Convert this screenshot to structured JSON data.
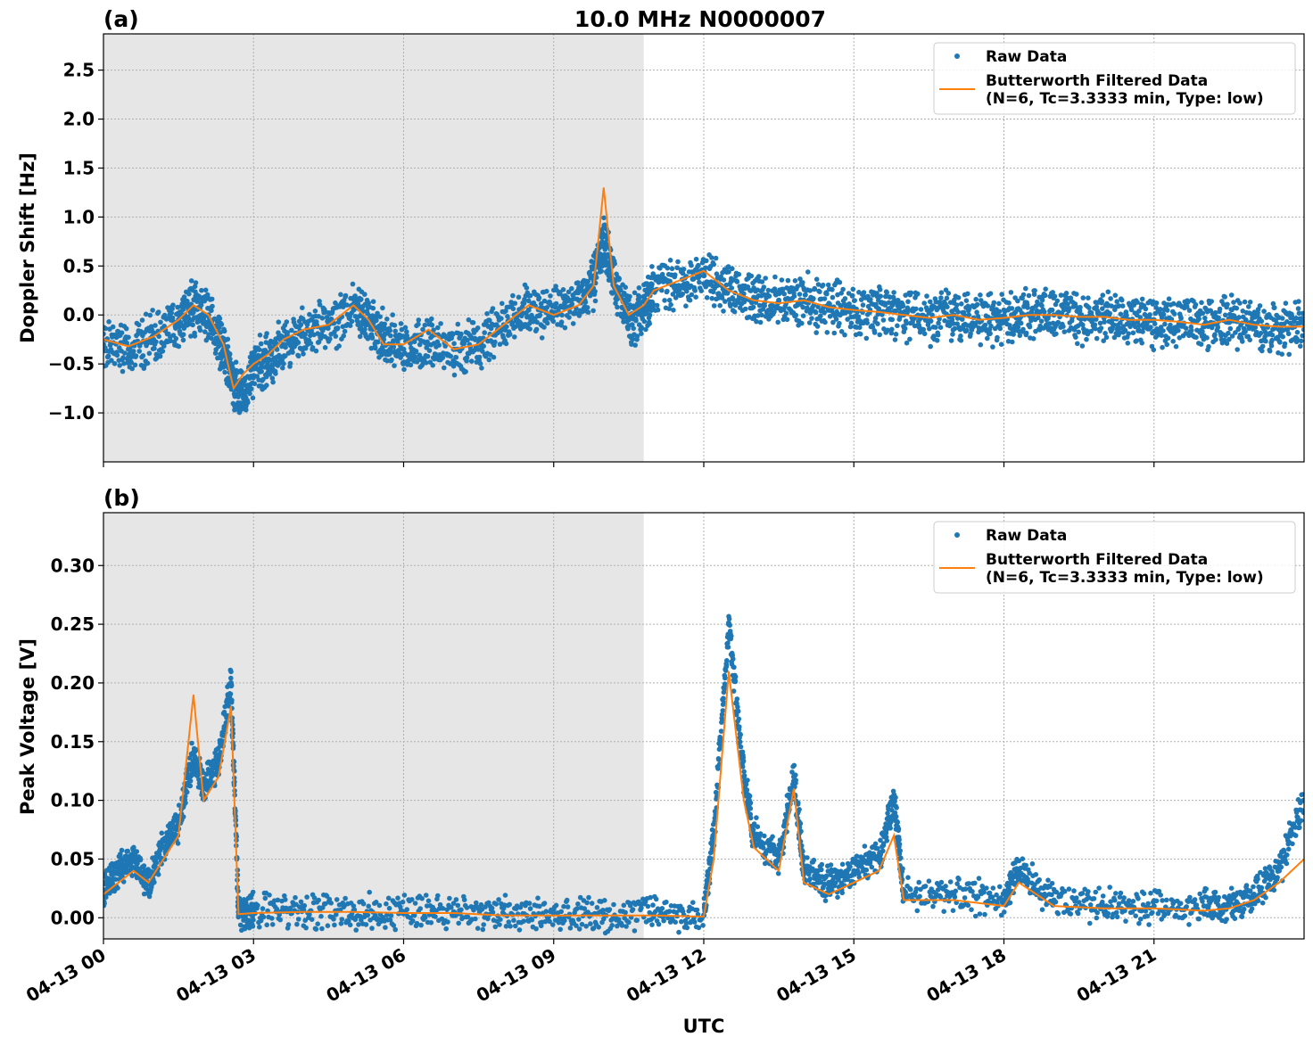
{
  "title": "10.0 MHz N0000007",
  "xlabel": "UTC",
  "x_ticks": [
    "04-13 00",
    "04-13 03",
    "04-13 06",
    "04-13 09",
    "04-13 12",
    "04-13 15",
    "04-13 18",
    "04-13 21"
  ],
  "colors": {
    "raw": "#1f77b4",
    "filtered": "#ff7f0e",
    "shade": "#e6e6e6",
    "grid": "#b0b0b0"
  },
  "legend": {
    "raw_label": "Raw Data",
    "filtered_line1": "Butterworth Filtered Data",
    "filtered_line2": "(N=6, Tc=3.3333 min, Type: low)"
  },
  "chart_data": [
    {
      "panel": "(a)",
      "type": "scatter+line",
      "ylabel": "Doppler Shift [Hz]",
      "ylim": [
        -1.5,
        2.87
      ],
      "xlim_hours": [
        0,
        24
      ],
      "y_ticks": [
        -1.0,
        -0.5,
        0.0,
        0.5,
        1.0,
        1.5,
        2.0,
        2.5
      ],
      "y_tick_labels": [
        "−1.0",
        "−0.5",
        "0.0",
        "0.5",
        "1.0",
        "1.5",
        "2.0",
        "2.5"
      ],
      "shaded_interval_hours": [
        0,
        10.8
      ],
      "series": [
        {
          "name": "Raw Data",
          "style": "markers",
          "x": [
            0,
            0.5,
            1.0,
            1.5,
            1.8,
            2.1,
            2.4,
            2.6,
            2.8,
            3.0,
            3.3,
            3.6,
            4.0,
            4.5,
            5.0,
            5.3,
            5.6,
            6.0,
            6.5,
            7.0,
            7.5,
            8.0,
            8.5,
            9.0,
            9.5,
            9.8,
            10.0,
            10.2,
            10.5,
            10.8,
            11.0,
            11.5,
            12.0,
            12.5,
            13.0,
            13.5,
            14.0,
            14.5,
            15.0,
            15.5,
            16.0,
            16.5,
            17.0,
            17.5,
            18.0,
            18.5,
            19.0,
            19.5,
            20.0,
            20.5,
            21.0,
            21.5,
            22.0,
            22.5,
            23.0,
            23.5,
            24.0
          ],
          "y": [
            -0.3,
            -0.35,
            -0.25,
            -0.05,
            0.08,
            0.0,
            -0.35,
            -0.7,
            -0.85,
            -0.55,
            -0.45,
            -0.3,
            -0.2,
            -0.1,
            0.05,
            -0.05,
            -0.25,
            -0.35,
            -0.3,
            -0.35,
            -0.3,
            -0.1,
            0.05,
            0.0,
            0.15,
            0.35,
            0.8,
            0.35,
            -0.05,
            0.05,
            0.25,
            0.3,
            0.4,
            0.25,
            0.18,
            0.15,
            0.15,
            0.08,
            0.05,
            0.05,
            0.0,
            -0.05,
            0.0,
            -0.05,
            -0.05,
            0.0,
            0.0,
            -0.03,
            -0.03,
            -0.05,
            -0.05,
            -0.08,
            -0.1,
            -0.05,
            -0.1,
            -0.15,
            -0.15
          ]
        },
        {
          "name": "Butterworth Filtered Data (N=6, Tc=3.3333 min, Type: low)",
          "style": "line",
          "x": [
            0,
            0.5,
            1.0,
            1.5,
            1.8,
            2.1,
            2.4,
            2.6,
            2.8,
            3.0,
            3.3,
            3.6,
            4.0,
            4.5,
            5.0,
            5.3,
            5.6,
            6.0,
            6.5,
            7.0,
            7.5,
            8.0,
            8.5,
            9.0,
            9.5,
            9.8,
            10.0,
            10.2,
            10.5,
            10.8,
            11.0,
            11.5,
            12.0,
            12.5,
            13.0,
            13.5,
            14.0,
            14.5,
            15.0,
            15.5,
            16.0,
            16.5,
            17.0,
            17.5,
            18.0,
            18.5,
            19.0,
            19.5,
            20.0,
            20.5,
            21.0,
            21.5,
            22.0,
            22.5,
            23.0,
            23.5,
            24.0
          ],
          "y": [
            -0.25,
            -0.32,
            -0.22,
            -0.05,
            0.1,
            0.0,
            -0.3,
            -0.75,
            -0.6,
            -0.5,
            -0.4,
            -0.25,
            -0.15,
            -0.1,
            0.1,
            -0.05,
            -0.3,
            -0.3,
            -0.15,
            -0.35,
            -0.3,
            -0.1,
            0.1,
            0.0,
            0.1,
            0.3,
            1.3,
            0.3,
            0.0,
            0.1,
            0.25,
            0.35,
            0.45,
            0.25,
            0.15,
            0.12,
            0.15,
            0.08,
            0.05,
            0.03,
            0.0,
            -0.03,
            0.0,
            -0.05,
            -0.03,
            0.0,
            0.0,
            -0.02,
            -0.02,
            -0.05,
            -0.05,
            -0.07,
            -0.1,
            -0.05,
            -0.1,
            -0.12,
            -0.12
          ]
        }
      ]
    },
    {
      "panel": "(b)",
      "type": "scatter+line",
      "ylabel": "Peak Voltage [V]",
      "ylim": [
        -0.018,
        0.345
      ],
      "xlim_hours": [
        0,
        24
      ],
      "y_ticks": [
        0.0,
        0.05,
        0.1,
        0.15,
        0.2,
        0.25,
        0.3
      ],
      "y_tick_labels": [
        "0.00",
        "0.05",
        "0.10",
        "0.15",
        "0.20",
        "0.25",
        "0.30"
      ],
      "shaded_interval_hours": [
        0,
        10.8
      ],
      "series": [
        {
          "name": "Raw Data",
          "style": "markers",
          "x": [
            0,
            0.3,
            0.6,
            0.9,
            1.2,
            1.5,
            1.8,
            2.0,
            2.3,
            2.55,
            2.7,
            3.0,
            4.0,
            5.0,
            6.0,
            7.0,
            8.0,
            9.0,
            10.0,
            11.0,
            12.0,
            12.2,
            12.5,
            12.8,
            13.0,
            13.5,
            13.8,
            14.0,
            14.5,
            15.0,
            15.5,
            15.8,
            16.0,
            17.0,
            18.0,
            18.3,
            19.0,
            20.0,
            21.0,
            22.0,
            22.5,
            23.0,
            23.5,
            24.0
          ],
          "y": [
            0.02,
            0.04,
            0.05,
            0.03,
            0.06,
            0.08,
            0.14,
            0.11,
            0.13,
            0.2,
            0.005,
            0.006,
            0.007,
            0.006,
            0.005,
            0.005,
            0.003,
            0.003,
            0.003,
            0.003,
            0.002,
            0.07,
            0.25,
            0.12,
            0.07,
            0.05,
            0.12,
            0.04,
            0.03,
            0.04,
            0.05,
            0.1,
            0.02,
            0.02,
            0.015,
            0.04,
            0.015,
            0.01,
            0.01,
            0.01,
            0.01,
            0.02,
            0.04,
            0.1
          ]
        },
        {
          "name": "Butterworth Filtered Data (N=6, Tc=3.3333 min, Type: low)",
          "style": "line",
          "x": [
            0,
            0.3,
            0.6,
            0.9,
            1.2,
            1.5,
            1.8,
            2.0,
            2.3,
            2.55,
            2.7,
            3.0,
            4.0,
            5.0,
            6.0,
            7.0,
            8.0,
            9.0,
            10.0,
            11.0,
            12.0,
            12.2,
            12.5,
            12.8,
            13.0,
            13.5,
            13.8,
            14.0,
            14.5,
            15.0,
            15.5,
            15.8,
            16.0,
            17.0,
            18.0,
            18.3,
            19.0,
            20.0,
            21.0,
            22.0,
            22.5,
            23.0,
            23.5,
            24.0
          ],
          "y": [
            0.02,
            0.03,
            0.04,
            0.03,
            0.05,
            0.07,
            0.19,
            0.1,
            0.12,
            0.18,
            0.003,
            0.004,
            0.005,
            0.005,
            0.004,
            0.004,
            0.002,
            0.002,
            0.002,
            0.002,
            0.001,
            0.05,
            0.21,
            0.1,
            0.06,
            0.04,
            0.11,
            0.03,
            0.02,
            0.03,
            0.04,
            0.07,
            0.015,
            0.015,
            0.01,
            0.03,
            0.01,
            0.008,
            0.008,
            0.006,
            0.008,
            0.015,
            0.03,
            0.05
          ]
        }
      ]
    }
  ]
}
